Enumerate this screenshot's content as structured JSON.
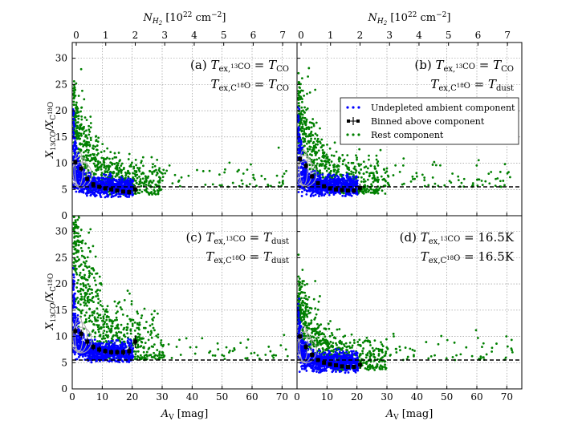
{
  "figure": {
    "top_axis_label": "N_H2 [10^22 cm^-2]",
    "top_ticks": [
      "0",
      "1",
      "2",
      "3",
      "4",
      "5",
      "6",
      "7"
    ],
    "bottom_axis_label": "A_V [mag]",
    "y_axis_label": "X13CO/XC18O"
  },
  "legend": [
    {
      "label": "Undepleted ambient component",
      "color": "#0000ff",
      "marker": "dot"
    },
    {
      "label": "Binned above component",
      "color": "#000000",
      "marker": "errorbar"
    },
    {
      "label": "Rest component",
      "color": "#008000",
      "marker": "dot"
    }
  ],
  "colors": {
    "ambient": "#0000ff",
    "rest": "#008000",
    "binned": "#000000",
    "contour": "#aaaaaa"
  },
  "chart_data": [
    {
      "panel": "a",
      "type": "scatter",
      "label_lines": [
        "(a) T_ex,13CO = T_CO",
        "T_ex,C18O = T_CO"
      ],
      "xlim": [
        0,
        75
      ],
      "ylim": [
        0,
        33
      ],
      "x_ticks": [
        0,
        10,
        20,
        30,
        40,
        50,
        60,
        70
      ],
      "y_ticks": [
        0,
        5,
        10,
        15,
        20,
        25,
        30
      ],
      "grid": true,
      "reference_line_y": 5.5,
      "binned_component": {
        "x": [
          1,
          3,
          5,
          7,
          9,
          11,
          13,
          15,
          17,
          19,
          21
        ],
        "y": [
          10.2,
          9.0,
          7.0,
          6.0,
          5.5,
          5.2,
          5.0,
          4.8,
          4.6,
          4.5,
          5.0
        ],
        "err": [
          0.5,
          0.6,
          0.5,
          0.4,
          0.4,
          0.3,
          0.3,
          0.3,
          0.4,
          0.5,
          0.8
        ]
      }
    },
    {
      "panel": "b",
      "type": "scatter",
      "label_lines": [
        "(b) T_ex,13CO = T_CO",
        "T_ex,C18O = T_dust"
      ],
      "xlim": [
        0,
        75
      ],
      "ylim": [
        0,
        33
      ],
      "x_ticks": [
        0,
        10,
        20,
        30,
        40,
        50,
        60,
        70
      ],
      "y_ticks": [
        0,
        5,
        10,
        15,
        20,
        25,
        30
      ],
      "grid": true,
      "reference_line_y": 5.5,
      "binned_component": {
        "x": [
          1,
          3,
          5,
          7,
          9,
          11,
          13,
          15,
          17,
          19,
          21
        ],
        "y": [
          10.8,
          9.5,
          7.5,
          6.2,
          5.6,
          5.2,
          5.0,
          4.9,
          4.8,
          4.8,
          5.3
        ],
        "err": [
          0.5,
          0.6,
          0.5,
          0.4,
          0.4,
          0.3,
          0.3,
          0.3,
          0.4,
          0.5,
          0.8
        ]
      }
    },
    {
      "panel": "c",
      "type": "scatter",
      "label_lines": [
        "(c) T_ex,13CO = T_dust",
        "T_ex,C18O = T_dust"
      ],
      "xlim": [
        0,
        75
      ],
      "ylim": [
        0,
        33
      ],
      "x_ticks": [
        0,
        10,
        20,
        30,
        40,
        50,
        60,
        70
      ],
      "y_ticks": [
        0,
        5,
        10,
        15,
        20,
        25,
        30
      ],
      "grid": true,
      "reference_line_y": 5.5,
      "binned_component": {
        "x": [
          1,
          3,
          5,
          7,
          9,
          11,
          13,
          15,
          17,
          19,
          21
        ],
        "y": [
          11.0,
          10.5,
          9.0,
          8.0,
          7.5,
          7.2,
          7.0,
          7.0,
          7.0,
          7.2,
          9.0
        ],
        "err": [
          0.6,
          0.8,
          0.7,
          0.6,
          0.6,
          0.5,
          0.5,
          0.5,
          0.6,
          0.8,
          1.2
        ]
      }
    },
    {
      "panel": "d",
      "type": "scatter",
      "label_lines": [
        "(d) T_ex,13CO = 16.5K",
        "T_ex,C18O = 16.5K"
      ],
      "xlim": [
        0,
        75
      ],
      "ylim": [
        0,
        33
      ],
      "x_ticks": [
        0,
        10,
        20,
        30,
        40,
        50,
        60,
        70
      ],
      "y_ticks": [
        0,
        5,
        10,
        15,
        20,
        25,
        30
      ],
      "grid": true,
      "reference_line_y": 5.5,
      "binned_component": {
        "x": [
          1,
          3,
          5,
          7,
          9,
          11,
          13,
          15,
          17,
          19,
          21
        ],
        "y": [
          10.0,
          8.0,
          6.5,
          5.5,
          5.0,
          4.7,
          4.5,
          4.3,
          4.2,
          4.2,
          4.6
        ],
        "err": [
          0.5,
          0.6,
          0.5,
          0.4,
          0.4,
          0.3,
          0.3,
          0.3,
          0.3,
          0.4,
          0.7
        ]
      }
    }
  ]
}
